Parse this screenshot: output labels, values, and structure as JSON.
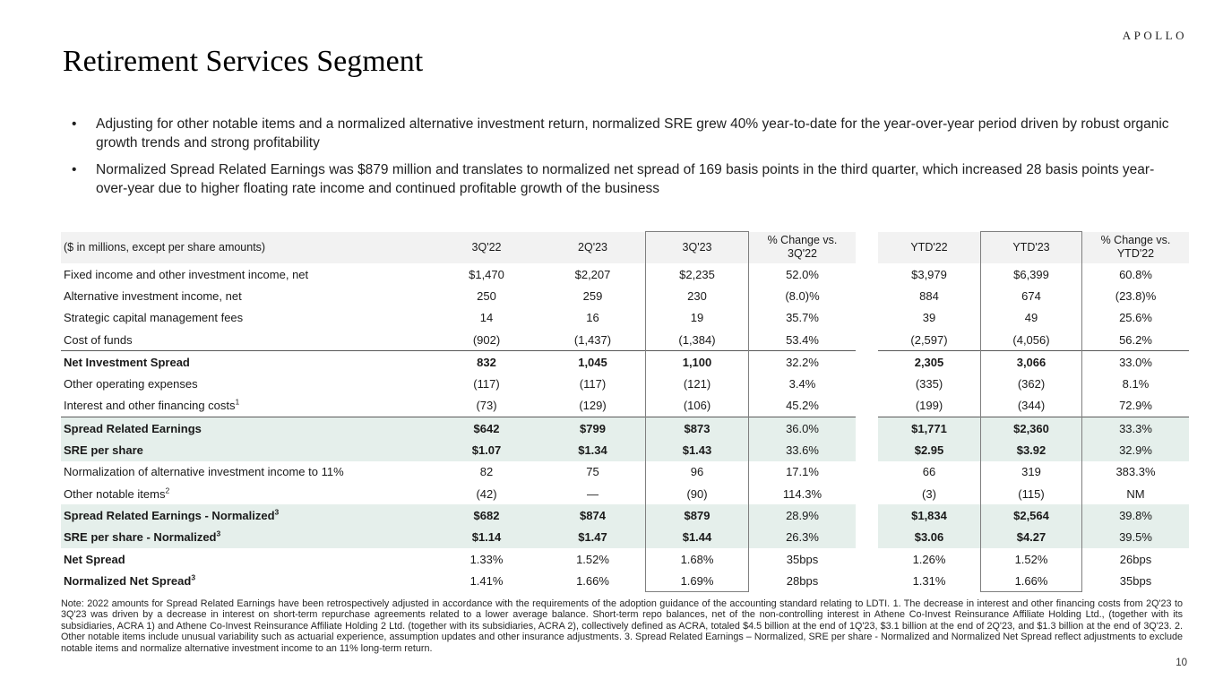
{
  "brand": {
    "logo": "APOLLO"
  },
  "slide": {
    "title": "Retirement Services Segment",
    "page_number": "10"
  },
  "bullets": [
    "Adjusting for other notable items and a normalized alternative investment return, normalized SRE grew 40% year-to-date for the year-over-year period driven by robust organic growth trends and strong profitability",
    "Normalized Spread Related Earnings was $879 million and translates to normalized net spread of 169 basis points in the third quarter, which increased 28 basis points year-over-year due to higher floating rate income and continued profitable growth of the business"
  ],
  "table": {
    "col_headers": [
      "($ in millions, except per share amounts)",
      "3Q'22",
      "2Q'23",
      "3Q'23",
      "% Change vs.\n3Q'22",
      "YTD'22",
      "YTD'23",
      "% Change vs.\nYTD'22"
    ],
    "rows": [
      {
        "label": "Fixed income and other investment income, net",
        "values": [
          "$1,470",
          "$2,207",
          "$2,235",
          "52.0%",
          "$3,979",
          "$6,399",
          "60.8%"
        ]
      },
      {
        "label": "Alternative investment income, net",
        "values": [
          "250",
          "259",
          "230",
          "(8.0)%",
          "884",
          "674",
          "(23.8)%"
        ]
      },
      {
        "label": "Strategic capital management fees",
        "values": [
          "14",
          "16",
          "19",
          "35.7%",
          "39",
          "49",
          "25.6%"
        ]
      },
      {
        "label": "Cost of funds",
        "values": [
          "(902)",
          "(1,437)",
          "(1,384)",
          "53.4%",
          "(2,597)",
          "(4,056)",
          "56.2%"
        ]
      },
      {
        "label": "Net Investment Spread",
        "bold": true,
        "topline": true,
        "values": [
          "832",
          "1,045",
          "1,100",
          "32.2%",
          "2,305",
          "3,066",
          "33.0%"
        ]
      },
      {
        "label": "Other operating expenses",
        "values": [
          "(117)",
          "(117)",
          "(121)",
          "3.4%",
          "(335)",
          "(362)",
          "8.1%"
        ]
      },
      {
        "label": "Interest and other financing costs",
        "sup": "1",
        "values": [
          "(73)",
          "(129)",
          "(106)",
          "45.2%",
          "(199)",
          "(344)",
          "72.9%"
        ]
      },
      {
        "label": "Spread Related Earnings",
        "bold": true,
        "highlight": true,
        "topline": true,
        "values": [
          "$642",
          "$799",
          "$873",
          "36.0%",
          "$1,771",
          "$2,360",
          "33.3%"
        ]
      },
      {
        "label": "SRE per share",
        "bold": true,
        "highlight": true,
        "values": [
          "$1.07",
          "$1.34",
          "$1.43",
          "33.6%",
          "$2.95",
          "$3.92",
          "32.9%"
        ]
      },
      {
        "label": "Normalization of alternative investment income to 11%",
        "values": [
          "82",
          "75",
          "96",
          "17.1%",
          "66",
          "319",
          "383.3%"
        ]
      },
      {
        "label": "Other notable items",
        "sup": "2",
        "values": [
          "(42)",
          "—",
          "(90)",
          "114.3%",
          "(3)",
          "(115)",
          "NM"
        ]
      },
      {
        "label": "Spread Related Earnings - Normalized",
        "sup": "3",
        "bold": true,
        "highlight": true,
        "values": [
          "$682",
          "$874",
          "$879",
          "28.9%",
          "$1,834",
          "$2,564",
          "39.8%"
        ]
      },
      {
        "label": "SRE per share - Normalized",
        "sup": "3",
        "bold": true,
        "highlight": true,
        "values": [
          "$1.14",
          "$1.47",
          "$1.44",
          "26.3%",
          "$3.06",
          "$4.27",
          "39.5%"
        ]
      },
      {
        "label": "Net Spread",
        "label_bold": true,
        "values": [
          "1.33%",
          "1.52%",
          "1.68%",
          "35bps",
          "1.26%",
          "1.52%",
          "26bps"
        ]
      },
      {
        "label": "Normalized Net Spread",
        "sup": "3",
        "label_bold": true,
        "values": [
          "1.41%",
          "1.66%",
          "1.69%",
          "28bps",
          "1.31%",
          "1.66%",
          "35bps"
        ]
      }
    ]
  },
  "footnote": "Note: 2022 amounts for Spread Related Earnings have been retrospectively adjusted in accordance with the requirements of the adoption guidance of the accounting standard relating to LDTI. 1. The decrease in interest and other financing costs from 2Q'23 to 3Q'23 was driven by a decrease in interest on short-term repurchase agreements related to a lower average balance. Short-term repo balances, net of the non-controlling interest in Athene Co-Invest Reinsurance Affiliate Holding Ltd., (together with its subsidiaries, ACRA 1) and Athene Co-Invest Reinsurance Affiliate Holding 2 Ltd. (together with its subsidiaries, ACRA 2), collectively defined as ACRA, totaled $4.5 billion at the end of 1Q'23, $3.1 billion at the end of 2Q'23, and $1.3 billion at the end of 3Q'23. 2. Other notable items include unusual variability such as actuarial experience, assumption updates and other insurance adjustments. 3. Spread Related Earnings – Normalized, SRE per share - Normalized and Normalized Net Spread reflect adjustments to exclude notable items and normalize alternative investment income to an 11% long-term return.",
  "colors": {
    "highlight": "#e5efeb",
    "header_bg": "#f2f2f2",
    "box_border": "#7f7f7f",
    "rule": "#595959"
  }
}
